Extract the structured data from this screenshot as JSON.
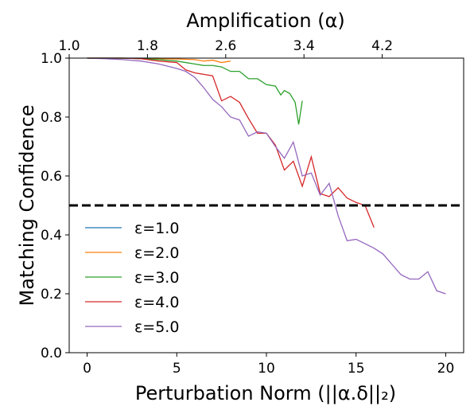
{
  "chart_data": {
    "type": "line",
    "xlabel": "Perturbation Norm (||α.δ||₂)",
    "ylabel": "Matching Confidence",
    "top_xlabel": "Amplification (α)",
    "xlim": [
      -1,
      21
    ],
    "ylim": [
      0.0,
      1.0
    ],
    "x_ticks": [
      0,
      5,
      10,
      15,
      20
    ],
    "x_tick_labels": [
      "0",
      "5",
      "10",
      "15",
      "20"
    ],
    "y_ticks": [
      0.0,
      0.2,
      0.4,
      0.6,
      0.8,
      1.0
    ],
    "y_tick_labels": [
      "0.0",
      "0.2",
      "0.4",
      "0.6",
      "0.8",
      "1.0"
    ],
    "top_x_ticks": [
      1.0,
      1.8,
      2.6,
      3.4,
      4.2
    ],
    "top_x_tick_labels": [
      "1.0",
      "1.8",
      "2.6",
      "3.4",
      "4.2"
    ],
    "top_axis_mapping": {
      "alpha_at_left": 1.0,
      "alpha_per_unit_norm": 0.1833
    },
    "threshold": {
      "y": 0.5,
      "style": "dashed",
      "color": "#000000"
    },
    "grid": false,
    "legend_placement": "lower-left",
    "series": [
      {
        "name": "ε=1.0",
        "color": "#1f77b4",
        "x": [
          0,
          1,
          2,
          3,
          4
        ],
        "y": [
          1.0,
          1.0,
          1.0,
          1.0,
          1.0
        ]
      },
      {
        "name": "ε=2.0",
        "color": "#ff7f0e",
        "x": [
          0,
          1,
          2,
          3,
          4,
          5,
          6,
          6.5,
          7,
          7.5,
          8
        ],
        "y": [
          1.0,
          1.0,
          1.0,
          0.999,
          0.998,
          0.997,
          0.995,
          0.99,
          0.993,
          0.985,
          0.99
        ]
      },
      {
        "name": "ε=3.0",
        "color": "#2ca02c",
        "x": [
          0,
          1,
          2,
          3,
          4,
          5,
          5.5,
          6,
          6.5,
          7,
          7.5,
          8,
          8.5,
          9,
          9.5,
          10,
          10.5,
          10.8,
          11,
          11.3,
          11.6,
          11.8,
          12.0
        ],
        "y": [
          1.0,
          1.0,
          1.0,
          0.998,
          0.995,
          0.99,
          0.985,
          0.98,
          0.975,
          0.975,
          0.97,
          0.955,
          0.955,
          0.93,
          0.93,
          0.91,
          0.905,
          0.875,
          0.89,
          0.88,
          0.85,
          0.775,
          0.855
        ]
      },
      {
        "name": "ε=4.0",
        "color": "#d62728",
        "x": [
          0,
          1,
          2,
          3,
          4,
          5,
          5.5,
          6,
          6.5,
          7,
          7.5,
          8,
          8.5,
          9,
          9.5,
          10,
          10.5,
          11,
          11.5,
          12,
          12.5,
          13,
          13.5,
          14,
          14.5,
          15,
          15.5,
          16
        ],
        "y": [
          1.0,
          1.0,
          1.0,
          0.998,
          0.99,
          0.985,
          0.96,
          0.95,
          0.945,
          0.94,
          0.855,
          0.87,
          0.85,
          0.795,
          0.745,
          0.745,
          0.705,
          0.62,
          0.65,
          0.565,
          0.665,
          0.54,
          0.53,
          0.56,
          0.525,
          0.51,
          0.5,
          0.425
        ]
      },
      {
        "name": "ε=5.0",
        "color": "#9467bd",
        "x": [
          0,
          1,
          2,
          3,
          4,
          5,
          5.5,
          6,
          6.5,
          7,
          7.5,
          8,
          8.5,
          9,
          9.5,
          10,
          10.5,
          11,
          11.5,
          12,
          12.5,
          13,
          13.5,
          14,
          14.5,
          15,
          15.5,
          16,
          16.5,
          17,
          17.5,
          18,
          18.5,
          19,
          19.5,
          20
        ],
        "y": [
          1.0,
          0.998,
          0.995,
          0.99,
          0.98,
          0.965,
          0.955,
          0.935,
          0.9,
          0.86,
          0.835,
          0.8,
          0.79,
          0.735,
          0.75,
          0.745,
          0.7,
          0.66,
          0.715,
          0.6,
          0.61,
          0.535,
          0.575,
          0.465,
          0.38,
          0.385,
          0.37,
          0.355,
          0.335,
          0.3,
          0.265,
          0.25,
          0.25,
          0.275,
          0.21,
          0.2
        ]
      }
    ]
  }
}
